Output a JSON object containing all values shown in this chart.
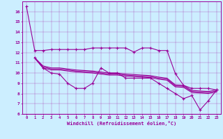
{
  "xlabel": "Windchill (Refroidissement éolien,°C)",
  "bg_color": "#cceeff",
  "line_color": "#990099",
  "xlim": [
    -0.5,
    23.5
  ],
  "ylim": [
    6,
    17
  ],
  "yticks": [
    6,
    7,
    8,
    9,
    10,
    11,
    12,
    13,
    14,
    15,
    16
  ],
  "xticks": [
    0,
    1,
    2,
    3,
    4,
    5,
    6,
    7,
    8,
    9,
    10,
    11,
    12,
    13,
    14,
    15,
    16,
    17,
    18,
    19,
    20,
    21,
    22,
    23
  ],
  "series": [
    {
      "x": [
        0,
        1,
        2,
        3,
        4,
        5,
        6,
        7,
        8,
        9,
        10,
        11,
        12,
        13,
        14,
        15,
        16,
        17,
        18,
        19,
        20,
        21,
        22,
        23
      ],
      "y": [
        16.5,
        12.2,
        12.2,
        12.3,
        12.3,
        12.3,
        12.3,
        12.3,
        12.45,
        12.45,
        12.45,
        12.45,
        12.45,
        12.05,
        12.45,
        12.45,
        12.2,
        12.2,
        9.95,
        8.8,
        8.5,
        8.5,
        8.5,
        8.35
      ],
      "marker": "+",
      "lw": 0.8
    },
    {
      "x": [
        1,
        2,
        3,
        4,
        5,
        6,
        7,
        8,
        9,
        10,
        11,
        12,
        13,
        14,
        15,
        16,
        17,
        18,
        19,
        20,
        21,
        22,
        23
      ],
      "y": [
        11.5,
        10.5,
        10.0,
        9.9,
        9.0,
        8.5,
        8.5,
        9.0,
        10.5,
        10.0,
        10.0,
        9.5,
        9.5,
        9.5,
        9.5,
        9.0,
        8.5,
        8.0,
        7.5,
        7.8,
        6.4,
        7.3,
        8.35
      ],
      "marker": "+",
      "lw": 0.8
    },
    {
      "x": [
        1,
        2,
        3,
        4,
        5,
        6,
        7,
        8,
        9,
        10,
        11,
        12,
        13,
        14,
        15,
        16,
        17,
        18,
        19,
        20,
        21,
        22,
        23
      ],
      "y": [
        11.5,
        10.7,
        10.5,
        10.5,
        10.4,
        10.3,
        10.25,
        10.2,
        10.1,
        10.0,
        10.0,
        9.9,
        9.85,
        9.8,
        9.75,
        9.6,
        9.5,
        8.85,
        8.8,
        8.3,
        8.25,
        8.2,
        8.35
      ],
      "marker": null,
      "lw": 0.8
    },
    {
      "x": [
        1,
        2,
        3,
        4,
        5,
        6,
        7,
        8,
        9,
        10,
        11,
        12,
        13,
        14,
        15,
        16,
        17,
        18,
        19,
        20,
        21,
        22,
        23
      ],
      "y": [
        11.5,
        10.6,
        10.4,
        10.4,
        10.3,
        10.2,
        10.15,
        10.1,
        10.0,
        9.9,
        9.9,
        9.8,
        9.75,
        9.7,
        9.65,
        9.5,
        9.4,
        8.75,
        8.7,
        8.2,
        8.15,
        8.1,
        8.25
      ],
      "marker": null,
      "lw": 0.8
    },
    {
      "x": [
        1,
        2,
        3,
        4,
        5,
        6,
        7,
        8,
        9,
        10,
        11,
        12,
        13,
        14,
        15,
        16,
        17,
        18,
        19,
        20,
        21,
        22,
        23
      ],
      "y": [
        11.45,
        10.5,
        10.3,
        10.3,
        10.2,
        10.1,
        10.05,
        10.0,
        9.9,
        9.8,
        9.8,
        9.7,
        9.65,
        9.6,
        9.55,
        9.4,
        9.3,
        8.65,
        8.6,
        8.1,
        8.05,
        8.0,
        8.15
      ],
      "marker": null,
      "lw": 0.8
    }
  ]
}
